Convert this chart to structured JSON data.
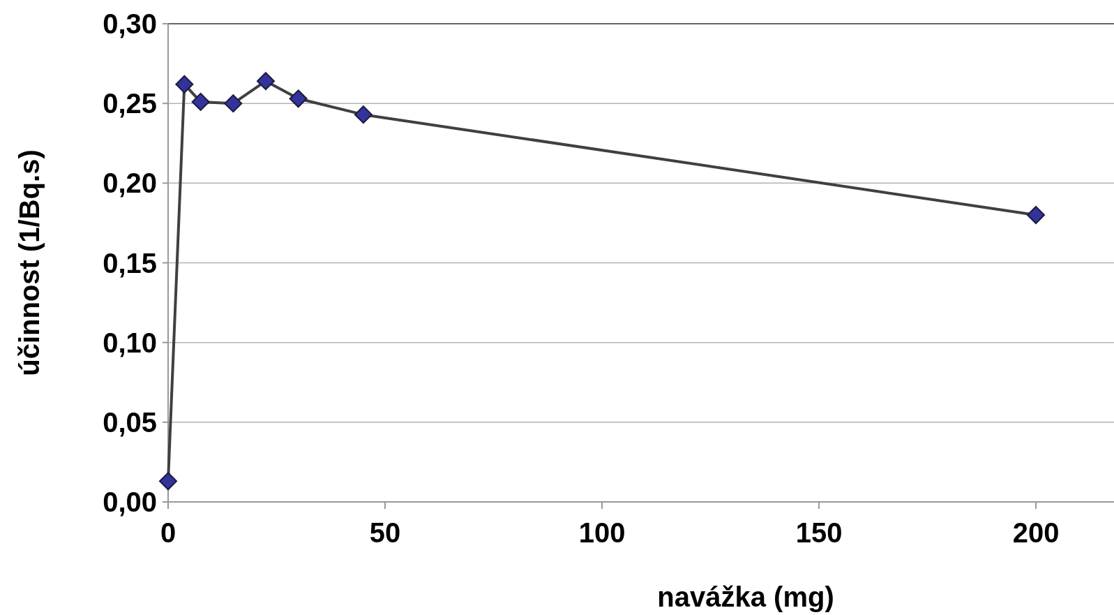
{
  "chart_data": {
    "type": "line",
    "xlabel": "navážka (mg)",
    "ylabel": "účinnost (1/Bq.s)",
    "x": [
      0,
      3.75,
      7.5,
      15,
      22.5,
      30,
      45,
      200
    ],
    "series": [
      {
        "color": "#333399",
        "values": [
          0.013,
          0.262,
          0.251,
          0.25,
          0.264,
          0.253,
          0.243,
          0.18
        ]
      }
    ],
    "xlim": [
      0,
      218
    ],
    "xticks": [
      0,
      50,
      100,
      150,
      200
    ],
    "ylim": [
      0,
      0.3
    ],
    "yticks": [
      {
        "value": 0,
        "label": "0,00"
      },
      {
        "value": 0.05,
        "label": "0,05"
      },
      {
        "value": 0.1,
        "label": "0,10"
      },
      {
        "value": 0.15,
        "label": "0,15"
      },
      {
        "value": 0.2,
        "label": "0,20"
      },
      {
        "value": 0.25,
        "label": "0,25"
      },
      {
        "value": 0.3,
        "label": "0,30"
      }
    ],
    "grid": "y",
    "marker": "diamond",
    "line_style": "solid"
  }
}
